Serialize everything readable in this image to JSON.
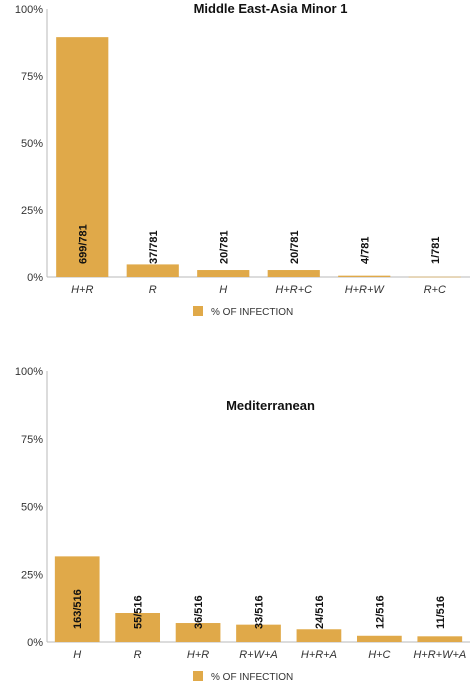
{
  "chart_data": [
    {
      "type": "bar",
      "title": "Middle East-Asia Minor 1",
      "xlabel": "",
      "ylabel": "",
      "categories": [
        "H+R",
        "R",
        "H",
        "H+R+C",
        "H+R+W",
        "R+C"
      ],
      "values": [
        89.5,
        4.7,
        2.6,
        2.6,
        0.5,
        0.1
      ],
      "data_labels": [
        "699/781",
        "37/781",
        "20/781",
        "20/781",
        "4/781",
        "1/781"
      ],
      "y_ticks": [
        0,
        25,
        50,
        75,
        100
      ],
      "y_tick_labels": [
        "0%",
        "25%",
        "50%",
        "75%",
        "100%"
      ],
      "ylim": [
        0,
        100
      ],
      "grid": false,
      "legend_position": "bottom",
      "series": [
        {
          "name": "% OF INFECTION",
          "color": "#E0A949"
        }
      ]
    },
    {
      "type": "bar",
      "title": "Mediterranean",
      "xlabel": "",
      "ylabel": "",
      "categories": [
        "H",
        "R",
        "H+R",
        "R+W+A",
        "H+R+A",
        "H+C",
        "H+R+W+A"
      ],
      "values": [
        31.6,
        10.7,
        7.0,
        6.4,
        4.7,
        2.3,
        2.1
      ],
      "data_labels": [
        "163/516",
        "55/516",
        "36/516",
        "33/516",
        "24/516",
        "12/516",
        "11/516"
      ],
      "y_ticks": [
        0,
        25,
        50,
        75,
        100
      ],
      "y_tick_labels": [
        "0%",
        "25%",
        "50%",
        "75%",
        "100%"
      ],
      "ylim": [
        0,
        100
      ],
      "grid": false,
      "legend_position": "bottom",
      "series": [
        {
          "name": "% OF INFECTION",
          "color": "#E0A949"
        }
      ]
    }
  ]
}
